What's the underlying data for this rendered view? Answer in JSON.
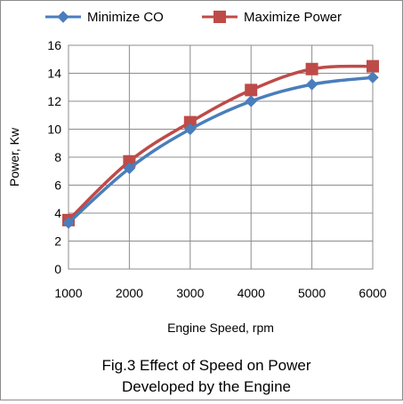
{
  "chart_data": {
    "type": "line",
    "title": "",
    "caption": [
      "Fig.3 Effect of Speed on Power",
      "Developed by the Engine"
    ],
    "xlabel": "Engine Speed, rpm",
    "ylabel": "Power, Kw",
    "x": [
      1000,
      2000,
      3000,
      4000,
      5000,
      6000
    ],
    "xlim": [
      1000,
      6000
    ],
    "ylim": [
      0,
      16
    ],
    "yticks": [
      0,
      2,
      4,
      6,
      8,
      10,
      12,
      14,
      16
    ],
    "grid": true,
    "legend_position": "top",
    "series": [
      {
        "name": "Minimize CO",
        "values": [
          3.3,
          7.2,
          10.0,
          12.0,
          13.2,
          13.7
        ],
        "color": "#4a7ebb",
        "marker": "diamond"
      },
      {
        "name": "Maximize Power",
        "values": [
          3.5,
          7.7,
          10.5,
          12.8,
          14.3,
          14.5
        ],
        "color": "#be4b48",
        "marker": "square"
      }
    ]
  }
}
